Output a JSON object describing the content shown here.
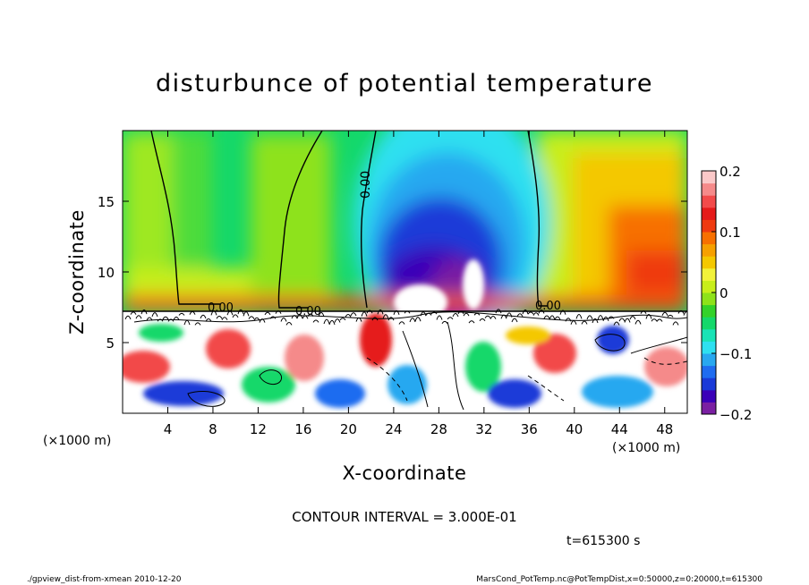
{
  "chart_data": {
    "type": "heatmap",
    "title": "disturbunce of potential temperature",
    "xlabel": "X-coordinate",
    "ylabel": "Z-coordinate",
    "x_unit_left": "(×1000 m)",
    "x_unit_right": "(×1000 m)",
    "y_unit": "(×1000 m)",
    "xlim": [
      0,
      50
    ],
    "ylim": [
      0,
      20
    ],
    "x_ticks": [
      4,
      8,
      12,
      16,
      20,
      24,
      28,
      32,
      36,
      40,
      44,
      48
    ],
    "x_tick_labels": [
      "4",
      "8",
      "12",
      "16",
      "20",
      "24",
      "28",
      "32",
      "36",
      "40",
      "44",
      "48"
    ],
    "y_ticks": [
      5,
      10,
      15
    ],
    "y_tick_labels": [
      "5",
      "10",
      "15"
    ],
    "colorbar": {
      "range": [
        -0.2,
        0.2
      ],
      "ticks": [
        -0.2,
        -0.1,
        0,
        0.1,
        0.2
      ],
      "tick_labels": [
        "−0.2",
        "−0.1",
        "0",
        "0.1",
        "0.2"
      ],
      "colors": [
        "#7a1fa2",
        "#3a00b8",
        "#1a3ad8",
        "#1f6cf0",
        "#28a8f0",
        "#2ee0f0",
        "#19e3b6",
        "#14d86a",
        "#33d22a",
        "#8ee21a",
        "#c8ee1a",
        "#f2f23a",
        "#f4c800",
        "#f6a000",
        "#f77000",
        "#ef3a10",
        "#e51a1a",
        "#f24a4a",
        "#f58a8a",
        "#fac8c8"
      ]
    },
    "contour_labels": [
      "0.00",
      "0.00",
      "0.00",
      "0.00"
    ],
    "contour_interval": "CONTOUR INTERVAL = 3.000E-01",
    "time_label": "t=615300 s"
  },
  "footer": {
    "left": "./gpview_dist-from-xmean  2010-12-20",
    "right": "MarsCond_PotTemp.nc@PotTempDist,x=0:50000,z=0:20000,t=615300"
  }
}
